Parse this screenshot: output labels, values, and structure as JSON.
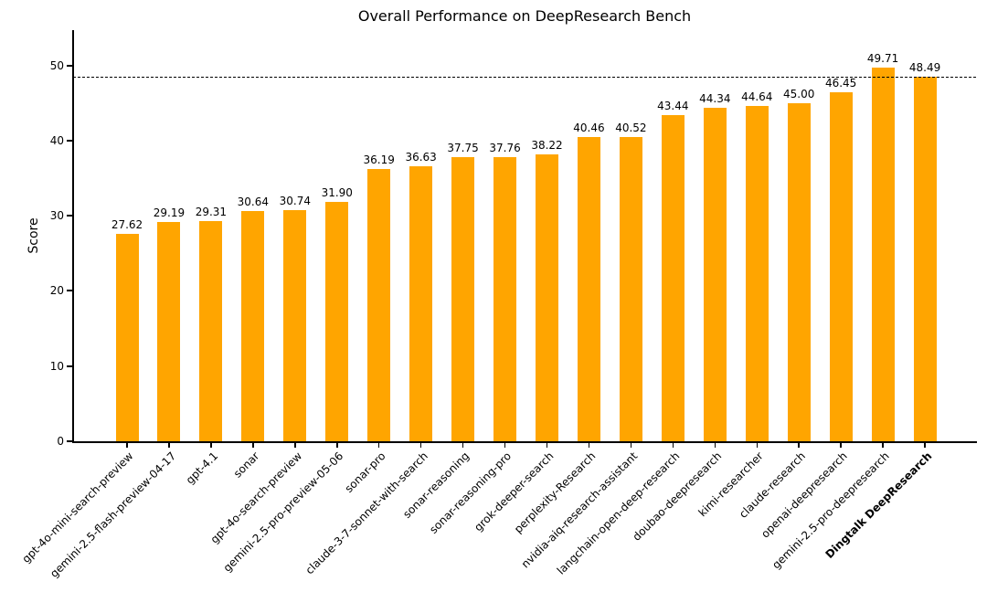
{
  "chart_data": {
    "type": "bar",
    "title": "Overall Performance on DeepResearch Bench",
    "xlabel": "",
    "ylabel": "Score",
    "categories": [
      "gpt-4o-mini-search-preview",
      "gemini-2.5-flash-preview-04-17",
      "gpt-4.1",
      "sonar",
      "gpt-4o-search-preview",
      "gemini-2.5-pro-preview-05-06",
      "sonar-pro",
      "claude-3-7-sonnet-with-search",
      "sonar-reasoning",
      "sonar-reasoning-pro",
      "grok-deeper-search",
      "perplexity-Research",
      "nvidia-aiq-research-assistant",
      "langchain-open-deep-research",
      "doubao-deepresearch",
      "kimi-researcher",
      "claude-research",
      "openai-deepresearch",
      "gemini-2.5-pro-deepresearch",
      "Dingtalk DeepResearch"
    ],
    "values": [
      27.62,
      29.19,
      29.31,
      30.64,
      30.74,
      31.9,
      36.19,
      36.63,
      37.75,
      37.76,
      38.22,
      40.46,
      40.52,
      43.44,
      44.34,
      44.64,
      45.0,
      46.45,
      49.71,
      48.49
    ],
    "value_labels": [
      "27.62",
      "29.19",
      "29.31",
      "30.64",
      "30.74",
      "31.90",
      "36.19",
      "36.63",
      "37.75",
      "37.76",
      "38.22",
      "40.46",
      "40.52",
      "43.44",
      "44.34",
      "44.64",
      "45.00",
      "46.45",
      "49.71",
      "48.49"
    ],
    "yticks": [
      0,
      10,
      20,
      30,
      40,
      50
    ],
    "ylim": [
      0,
      54.7
    ],
    "grid": false,
    "legend_position": "none",
    "bar_color": "#FFA500",
    "bold_category_index": 19,
    "reference_line": {
      "value": 48.49,
      "style": "dashed",
      "color": "#000000"
    }
  }
}
